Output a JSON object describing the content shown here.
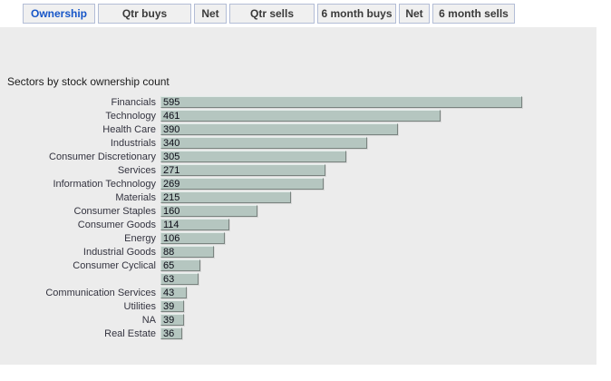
{
  "tabs": {
    "items": [
      {
        "label": "Ownership",
        "active": true
      },
      {
        "label": "Qtr buys",
        "active": false
      },
      {
        "label": "Net",
        "active": false
      },
      {
        "label": "Qtr sells",
        "active": false
      },
      {
        "label": "6 month buys",
        "active": false
      },
      {
        "label": "Net",
        "active": false
      },
      {
        "label": "6 month sells",
        "active": false
      }
    ]
  },
  "chart_data": {
    "type": "bar",
    "orientation": "horizontal",
    "title": "Sectors by stock ownership count",
    "categories": [
      "Financials",
      "Technology",
      "Health Care",
      "Industrials",
      "Consumer Discretionary",
      "Services",
      "Information Technology",
      "Materials",
      "Consumer Staples",
      "Consumer Goods",
      "Energy",
      "Industrial Goods",
      "Consumer Cyclical",
      "",
      "Communication Services",
      "Utilities",
      "NA",
      "Real Estate"
    ],
    "values": [
      595,
      461,
      390,
      340,
      305,
      271,
      269,
      215,
      160,
      114,
      106,
      88,
      65,
      63,
      43,
      39,
      39,
      36
    ],
    "xlabel": "",
    "ylabel": "",
    "xlim": [
      0,
      595
    ],
    "grid": false,
    "legend": "none",
    "value_labels": "shown at left edge of each bar"
  },
  "colors": {
    "active_tab_text": "#1756c8",
    "tab_text": "#3a3a3a",
    "tab_background": "#f0f0f0",
    "tab_border": "#b3bdd6",
    "panel_background": "#ececec",
    "bar_fill": "#b5c6c0"
  }
}
